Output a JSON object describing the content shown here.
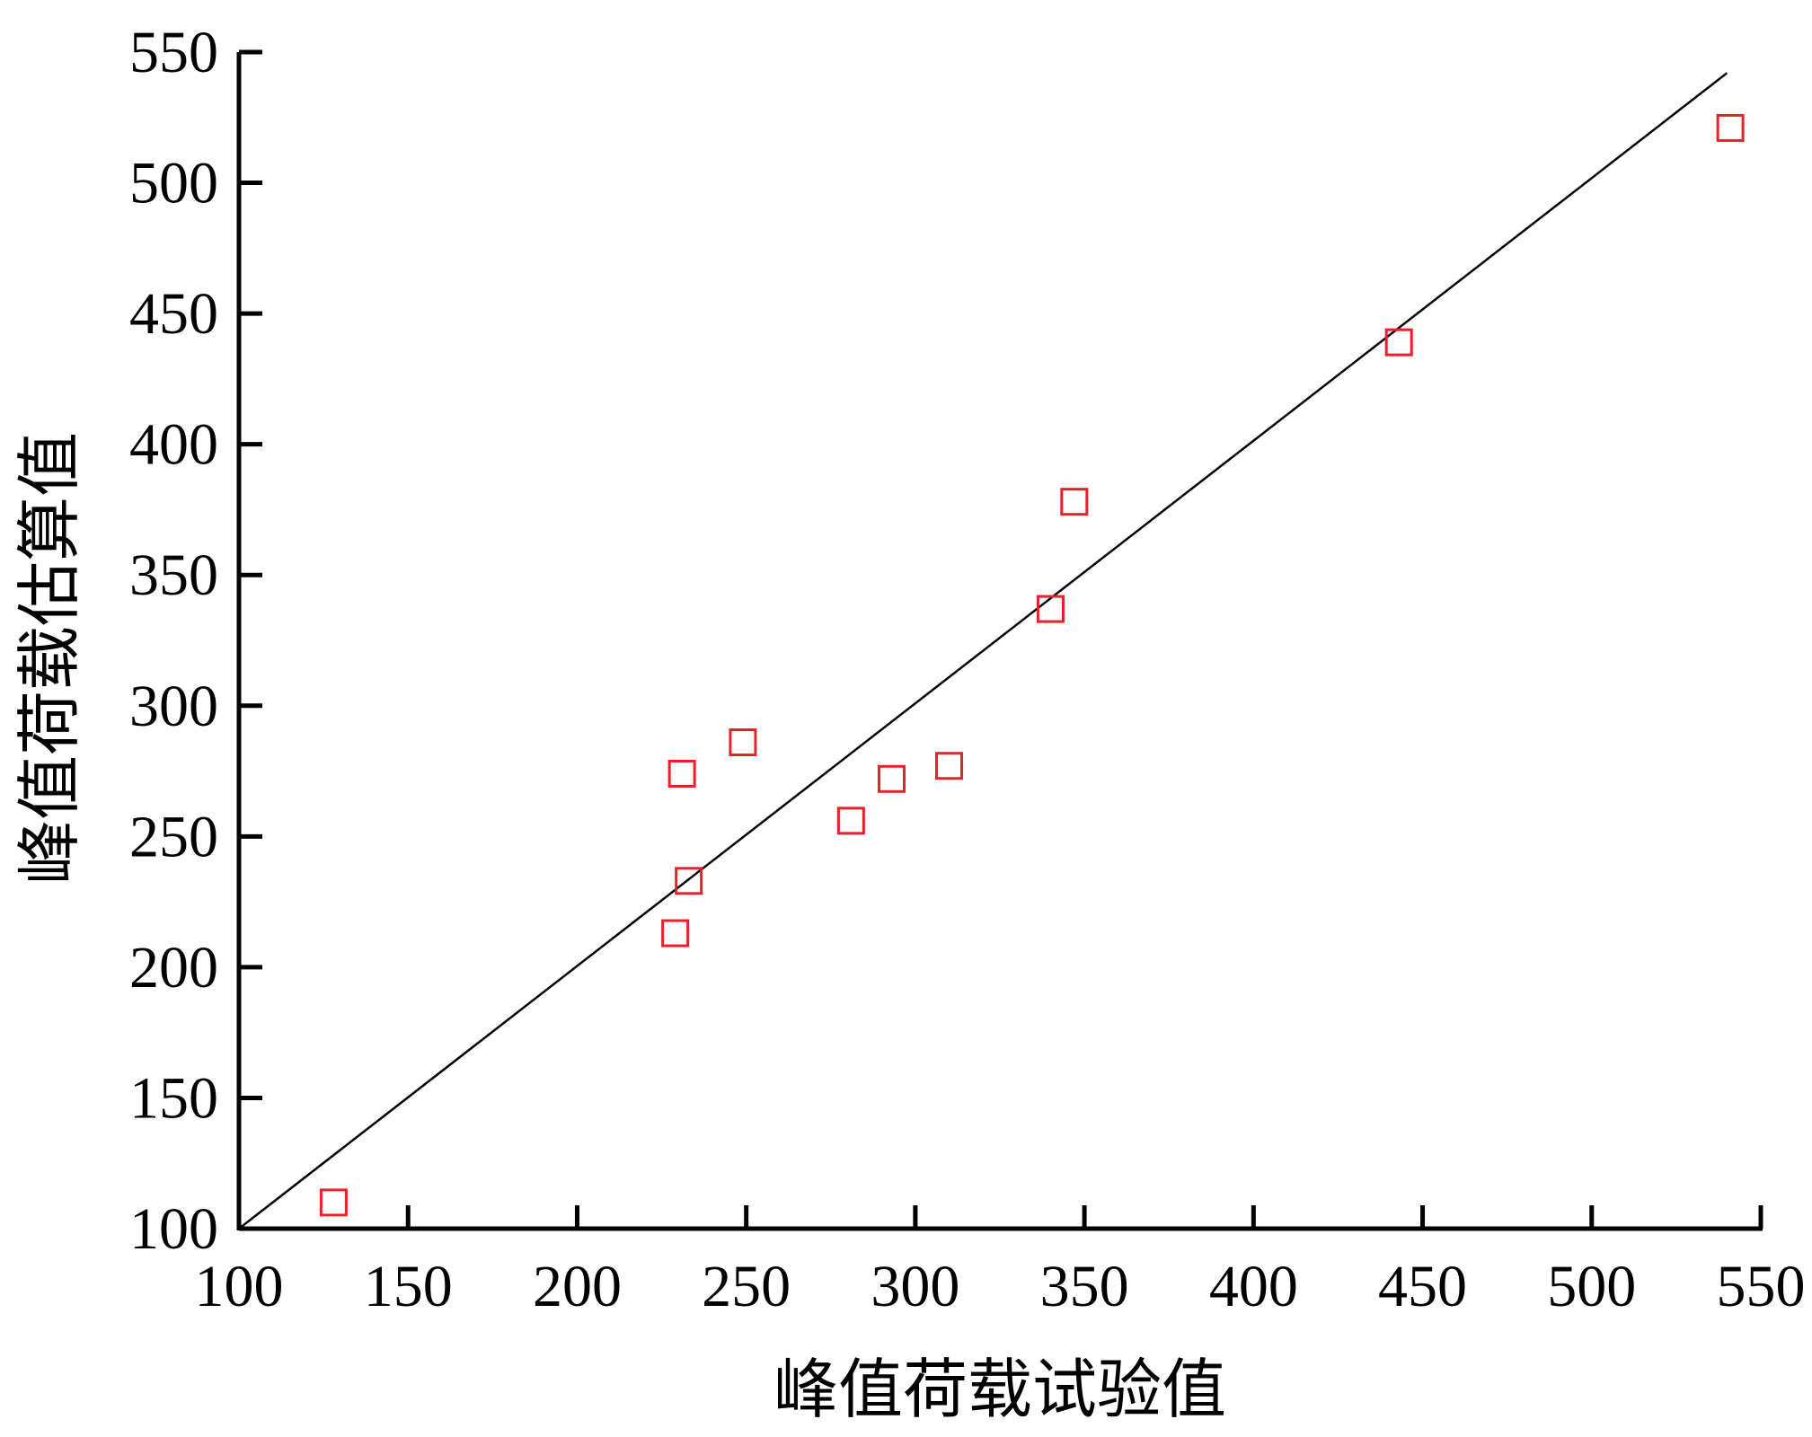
{
  "chart_data": {
    "type": "scatter",
    "title": "",
    "xlabel": "峰值荷载试验值",
    "ylabel": "峰值荷载估算值",
    "xlim": [
      100,
      550
    ],
    "ylim": [
      100,
      550
    ],
    "x_ticks": [
      "100",
      "150",
      "200",
      "250",
      "300",
      "350",
      "400",
      "450",
      "500",
      "550"
    ],
    "y_ticks": [
      "100",
      "150",
      "200",
      "250",
      "300",
      "350",
      "400",
      "450",
      "500",
      "550"
    ],
    "grid": false,
    "legend": "none",
    "reference_line": {
      "from": [
        100,
        100
      ],
      "to": [
        540,
        542
      ],
      "color": "#000000"
    },
    "series": [
      {
        "marker": "open-square",
        "color": "#e8202a",
        "points": [
          {
            "x": 128,
            "y": 110
          },
          {
            "x": 229,
            "y": 213
          },
          {
            "x": 233,
            "y": 233
          },
          {
            "x": 231,
            "y": 274
          },
          {
            "x": 249,
            "y": 286
          },
          {
            "x": 281,
            "y": 256
          },
          {
            "x": 293,
            "y": 272
          },
          {
            "x": 310,
            "y": 277
          },
          {
            "x": 340,
            "y": 337
          },
          {
            "x": 347,
            "y": 378
          },
          {
            "x": 443,
            "y": 439
          },
          {
            "x": 541,
            "y": 521
          }
        ]
      }
    ]
  }
}
